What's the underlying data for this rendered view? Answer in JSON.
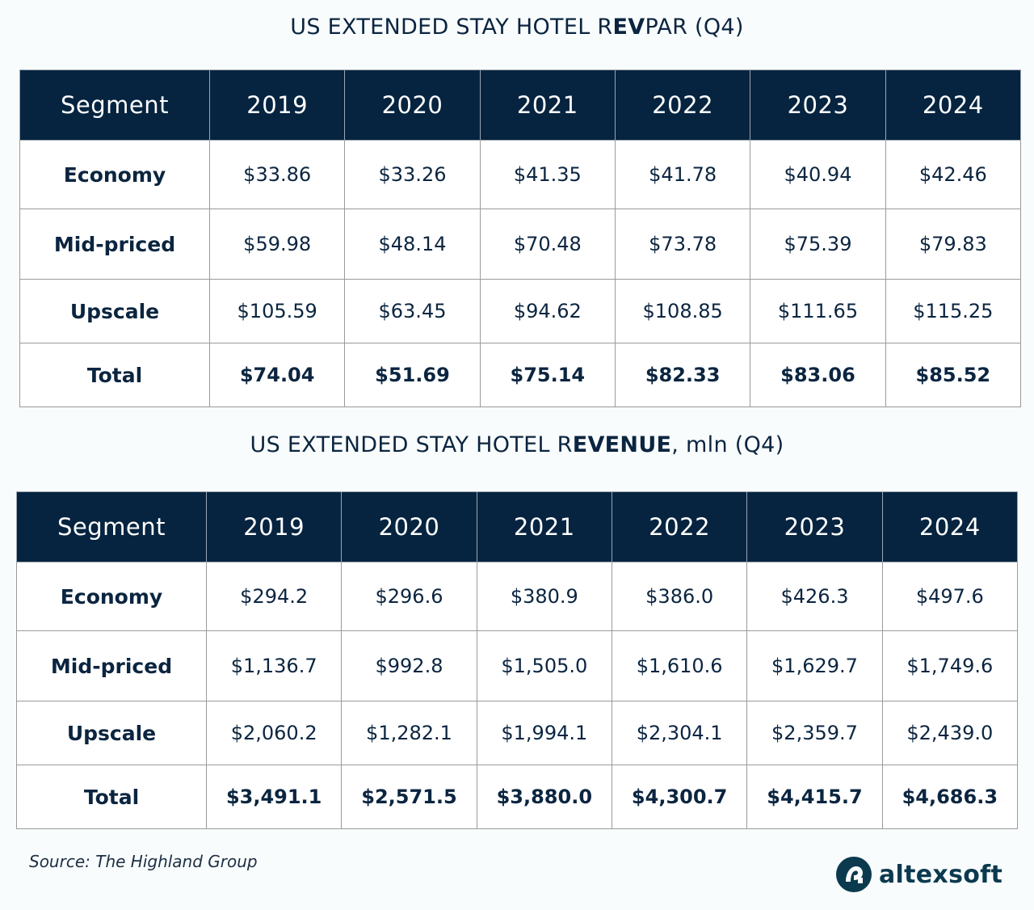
{
  "chart_data": [
    {
      "type": "table",
      "title_main": "US EXTENDED STAY HOTEL R",
      "title_bold": "EV",
      "title_tail": "PAR (Q4)",
      "columns": [
        "Segment",
        "2019",
        "2020",
        "2021",
        "2022",
        "2023",
        "2024"
      ],
      "rows": [
        {
          "segment": "Economy",
          "values": [
            "$33.86",
            "$33.26",
            "$41.35",
            "$41.78",
            "$40.94",
            "$42.46"
          ]
        },
        {
          "segment": "Mid-priced",
          "values": [
            "$59.98",
            "$48.14",
            "$70.48",
            "$73.78",
            "$75.39",
            "$79.83"
          ]
        },
        {
          "segment": "Upscale",
          "values": [
            "$105.59",
            "$63.45",
            "$94.62",
            "$108.85",
            "$111.65",
            "$115.25"
          ]
        },
        {
          "segment": "Total",
          "values": [
            "$74.04",
            "$51.69",
            "$75.14",
            "$82.33",
            "$83.06",
            "$85.52"
          ]
        }
      ]
    },
    {
      "type": "table",
      "title_main": "US EXTENDED STAY HOTEL R",
      "title_bold": "EVENUE",
      "title_tail": ", mln (Q4)",
      "columns": [
        "Segment",
        "2019",
        "2020",
        "2021",
        "2022",
        "2023",
        "2024"
      ],
      "rows": [
        {
          "segment": "Economy",
          "values": [
            "$294.2",
            "$296.6",
            "$380.9",
            "$386.0",
            "$426.3",
            "$497.6"
          ]
        },
        {
          "segment": "Mid-priced",
          "values": [
            "$1,136.7",
            "$992.8",
            "$1,505.0",
            "$1,610.6",
            "$1,629.7",
            "$1,749.6"
          ]
        },
        {
          "segment": "Upscale",
          "values": [
            "$2,060.2",
            "$1,282.1",
            "$1,994.1",
            "$2,304.1",
            "$2,359.7",
            "$2,439.0"
          ]
        },
        {
          "segment": "Total",
          "values": [
            "$3,491.1",
            "$2,571.5",
            "$3,880.0",
            "$4,300.7",
            "$4,415.7",
            "$4,686.3"
          ]
        }
      ]
    }
  ],
  "source": "Source: The Highland Group",
  "logo": {
    "text": "altexsoft",
    "icon": "altexsoft-logo-icon",
    "color": "#0b3a4f"
  },
  "colors": {
    "header_bg": "#062440",
    "text": "#0b2540",
    "page_bg": "#f9fcfd"
  }
}
